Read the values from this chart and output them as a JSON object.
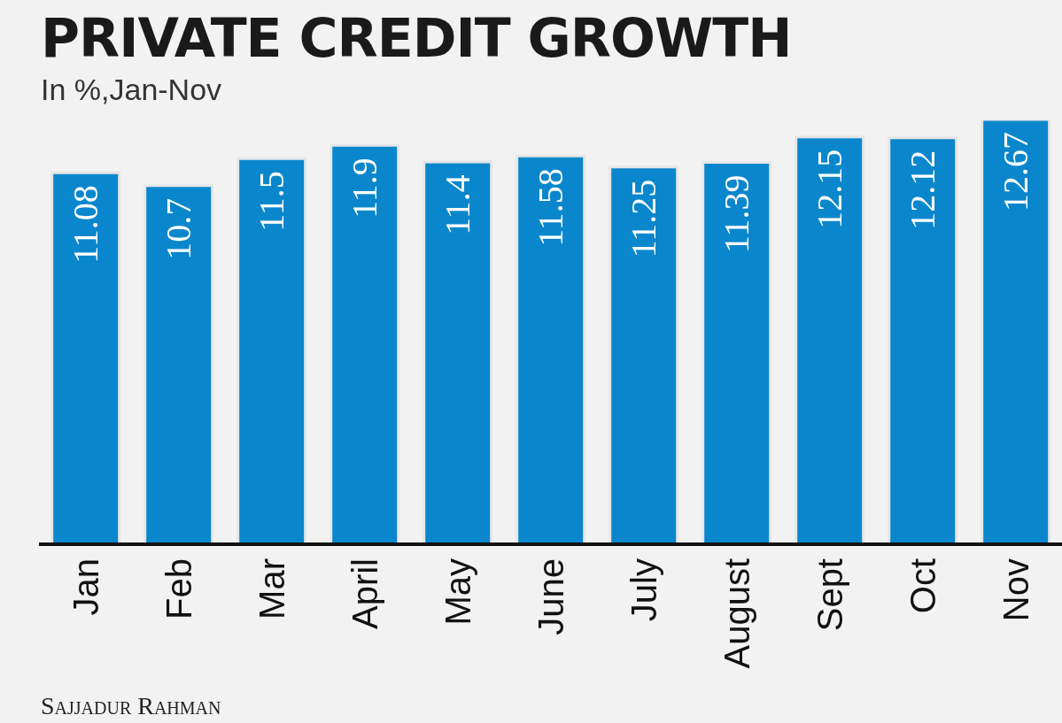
{
  "chart_data": {
    "type": "bar",
    "title": "PRIVATE CREDIT GROWTH",
    "subtitle": "In %,Jan-Nov",
    "categories": [
      "Jan",
      "Feb",
      "Mar",
      "April",
      "May",
      "June",
      "July",
      "August",
      "Sept",
      "Oct",
      "Nov"
    ],
    "values": [
      11.08,
      10.7,
      11.5,
      11.9,
      11.4,
      11.58,
      11.25,
      11.39,
      12.15,
      12.12,
      12.67
    ],
    "color": "#0a87cc",
    "data_labels": true,
    "grid": false,
    "legend": false,
    "annotations": [
      "Sajjadur Rahman"
    ]
  }
}
